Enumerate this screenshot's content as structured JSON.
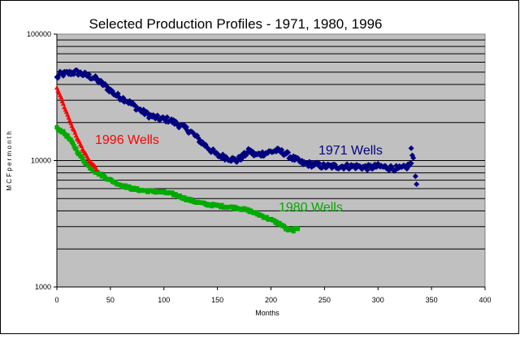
{
  "chart_data": {
    "type": "scatter",
    "title": "Selected Production Profiles - 1971, 1980, 1996",
    "xlabel": "Months",
    "ylabel": "M C F  p e r  m o n t h",
    "xlim": [
      0,
      400
    ],
    "ylim": [
      1000,
      100000
    ],
    "yscale": "log",
    "x_ticks": [
      0,
      50,
      100,
      150,
      200,
      250,
      300,
      350,
      400
    ],
    "y_tick_labels": [
      {
        "value": 1000,
        "label": "1000"
      },
      {
        "value": 10000,
        "label": "10000"
      },
      {
        "value": 100000,
        "label": "100000"
      }
    ],
    "grid": "horizontal log minor lines",
    "series": [
      {
        "name": "1971 Wells",
        "color": "#00007f",
        "marker": "diamond",
        "anchor_points": [
          [
            0,
            45000
          ],
          [
            3,
            48000
          ],
          [
            10,
            49000
          ],
          [
            18,
            50000
          ],
          [
            25,
            48000
          ],
          [
            35,
            45000
          ],
          [
            45,
            39000
          ],
          [
            55,
            33000
          ],
          [
            65,
            30000
          ],
          [
            75,
            26000
          ],
          [
            85,
            23000
          ],
          [
            95,
            21500
          ],
          [
            105,
            21000
          ],
          [
            115,
            19000
          ],
          [
            125,
            17000
          ],
          [
            135,
            14000
          ],
          [
            142,
            12500
          ],
          [
            150,
            11000
          ],
          [
            160,
            10500
          ],
          [
            168,
            10000
          ],
          [
            175,
            11000
          ],
          [
            180,
            12000
          ],
          [
            185,
            11000
          ],
          [
            195,
            11500
          ],
          [
            205,
            12000
          ],
          [
            213,
            11500
          ],
          [
            220,
            10500
          ],
          [
            230,
            9500
          ],
          [
            240,
            9300
          ],
          [
            250,
            9000
          ],
          [
            260,
            9000
          ],
          [
            270,
            9000
          ],
          [
            280,
            9000
          ],
          [
            290,
            8800
          ],
          [
            300,
            9000
          ],
          [
            310,
            8800
          ],
          [
            320,
            8600
          ],
          [
            326,
            8800
          ],
          [
            331,
            9500
          ]
        ],
        "extra_points": [
          [
            331,
            12500
          ],
          [
            332,
            11000
          ],
          [
            333,
            10500
          ],
          [
            335,
            7500
          ],
          [
            336,
            6500
          ]
        ]
      },
      {
        "name": "1980 Wells",
        "color": "#00aa00",
        "marker": "square",
        "anchor_points": [
          [
            0,
            18000
          ],
          [
            5,
            17000
          ],
          [
            10,
            15500
          ],
          [
            15,
            13500
          ],
          [
            20,
            11500
          ],
          [
            25,
            10000
          ],
          [
            30,
            9000
          ],
          [
            35,
            8300
          ],
          [
            40,
            7800
          ],
          [
            50,
            7000
          ],
          [
            60,
            6400
          ],
          [
            70,
            6000
          ],
          [
            80,
            5800
          ],
          [
            90,
            5700
          ],
          [
            100,
            5600
          ],
          [
            110,
            5400
          ],
          [
            120,
            5000
          ],
          [
            130,
            4700
          ],
          [
            140,
            4500
          ],
          [
            150,
            4400
          ],
          [
            160,
            4300
          ],
          [
            170,
            4200
          ],
          [
            180,
            4000
          ],
          [
            190,
            3700
          ],
          [
            200,
            3400
          ],
          [
            210,
            3100
          ],
          [
            215,
            2850
          ],
          [
            220,
            2800
          ],
          [
            225,
            2900
          ]
        ]
      },
      {
        "name": "1996 Wells",
        "color": "#ff0000",
        "marker": "triangle",
        "anchor_points": [
          [
            0,
            38000
          ],
          [
            3,
            33000
          ],
          [
            6,
            28000
          ],
          [
            10,
            23000
          ],
          [
            15,
            18000
          ],
          [
            20,
            14500
          ],
          [
            25,
            12000
          ],
          [
            30,
            10000
          ],
          [
            35,
            9000
          ],
          [
            37,
            8600
          ]
        ]
      }
    ]
  },
  "colors": {
    "plot_background": "#c0c0c0",
    "chart_background": "#ffffff",
    "border": "#000000"
  }
}
